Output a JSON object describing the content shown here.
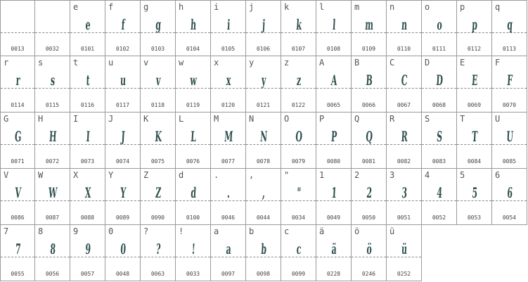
{
  "glyph_color": "#2f4f4f",
  "rows": [
    [
      {
        "label": "",
        "glyph": "",
        "code": "0013"
      },
      {
        "label": "",
        "glyph": "",
        "code": "0032"
      },
      {
        "label": "e",
        "glyph": "e",
        "code": "0101"
      },
      {
        "label": "f",
        "glyph": "f",
        "code": "0102"
      },
      {
        "label": "g",
        "glyph": "g",
        "code": "0103"
      },
      {
        "label": "h",
        "glyph": "h",
        "code": "0104"
      },
      {
        "label": "i",
        "glyph": "i",
        "code": "0105"
      },
      {
        "label": "j",
        "glyph": "j",
        "code": "0106"
      },
      {
        "label": "k",
        "glyph": "k",
        "code": "0107"
      },
      {
        "label": "l",
        "glyph": "l",
        "code": "0108"
      },
      {
        "label": "m",
        "glyph": "m",
        "code": "0109"
      },
      {
        "label": "n",
        "glyph": "n",
        "code": "0110"
      },
      {
        "label": "o",
        "glyph": "o",
        "code": "0111"
      },
      {
        "label": "p",
        "glyph": "p",
        "code": "0112"
      },
      {
        "label": "q",
        "glyph": "q",
        "code": "0113"
      }
    ],
    [
      {
        "label": "r",
        "glyph": "r",
        "code": "0114"
      },
      {
        "label": "s",
        "glyph": "s",
        "code": "0115"
      },
      {
        "label": "t",
        "glyph": "t",
        "code": "0116"
      },
      {
        "label": "u",
        "glyph": "u",
        "code": "0117"
      },
      {
        "label": "v",
        "glyph": "v",
        "code": "0118"
      },
      {
        "label": "w",
        "glyph": "w",
        "code": "0119"
      },
      {
        "label": "x",
        "glyph": "x",
        "code": "0120"
      },
      {
        "label": "y",
        "glyph": "y",
        "code": "0121"
      },
      {
        "label": "z",
        "glyph": "z",
        "code": "0122"
      },
      {
        "label": "A",
        "glyph": "A",
        "code": "0065"
      },
      {
        "label": "B",
        "glyph": "B",
        "code": "0066"
      },
      {
        "label": "C",
        "glyph": "C",
        "code": "0067"
      },
      {
        "label": "D",
        "glyph": "D",
        "code": "0068"
      },
      {
        "label": "E",
        "glyph": "E",
        "code": "0069"
      },
      {
        "label": "F",
        "glyph": "F",
        "code": "0070"
      }
    ],
    [
      {
        "label": "G",
        "glyph": "G",
        "code": "0071"
      },
      {
        "label": "H",
        "glyph": "H",
        "code": "0072"
      },
      {
        "label": "I",
        "glyph": "I",
        "code": "0073"
      },
      {
        "label": "J",
        "glyph": "J",
        "code": "0074"
      },
      {
        "label": "K",
        "glyph": "K",
        "code": "0075"
      },
      {
        "label": "L",
        "glyph": "L",
        "code": "0076"
      },
      {
        "label": "M",
        "glyph": "M",
        "code": "0077"
      },
      {
        "label": "N",
        "glyph": "N",
        "code": "0078"
      },
      {
        "label": "O",
        "glyph": "O",
        "code": "0079"
      },
      {
        "label": "P",
        "glyph": "P",
        "code": "0080"
      },
      {
        "label": "Q",
        "glyph": "Q",
        "code": "0081"
      },
      {
        "label": "R",
        "glyph": "R",
        "code": "0082"
      },
      {
        "label": "S",
        "glyph": "S",
        "code": "0083"
      },
      {
        "label": "T",
        "glyph": "T",
        "code": "0084"
      },
      {
        "label": "U",
        "glyph": "U",
        "code": "0085"
      }
    ],
    [
      {
        "label": "V",
        "glyph": "V",
        "code": "0086"
      },
      {
        "label": "W",
        "glyph": "W",
        "code": "0087"
      },
      {
        "label": "X",
        "glyph": "X",
        "code": "0088"
      },
      {
        "label": "Y",
        "glyph": "Y",
        "code": "0089"
      },
      {
        "label": "Z",
        "glyph": "Z",
        "code": "0090"
      },
      {
        "label": "d",
        "glyph": "d",
        "code": "0100"
      },
      {
        "label": ".",
        "glyph": ".",
        "code": "0046"
      },
      {
        "label": ",",
        "glyph": ",",
        "code": "0044"
      },
      {
        "label": "\"",
        "glyph": "\"",
        "code": "0034"
      },
      {
        "label": "1",
        "glyph": "1",
        "code": "0049"
      },
      {
        "label": "2",
        "glyph": "2",
        "code": "0050"
      },
      {
        "label": "3",
        "glyph": "3",
        "code": "0051"
      },
      {
        "label": "4",
        "glyph": "4",
        "code": "0052"
      },
      {
        "label": "5",
        "glyph": "5",
        "code": "0053"
      },
      {
        "label": "6",
        "glyph": "6",
        "code": "0054"
      }
    ],
    [
      {
        "label": "7",
        "glyph": "7",
        "code": "0055"
      },
      {
        "label": "8",
        "glyph": "8",
        "code": "0056"
      },
      {
        "label": "9",
        "glyph": "9",
        "code": "0057"
      },
      {
        "label": "0",
        "glyph": "0",
        "code": "0048"
      },
      {
        "label": "?",
        "glyph": "?",
        "code": "0063"
      },
      {
        "label": "!",
        "glyph": "!",
        "code": "0033"
      },
      {
        "label": "a",
        "glyph": "a",
        "code": "0097"
      },
      {
        "label": "b",
        "glyph": "b",
        "code": "0098"
      },
      {
        "label": "c",
        "glyph": "c",
        "code": "0099"
      },
      {
        "label": "ä",
        "glyph": "ä",
        "code": "0228"
      },
      {
        "label": "ö",
        "glyph": "ö",
        "code": "0246"
      },
      {
        "label": "ü",
        "glyph": "ü",
        "code": "0252"
      }
    ]
  ]
}
